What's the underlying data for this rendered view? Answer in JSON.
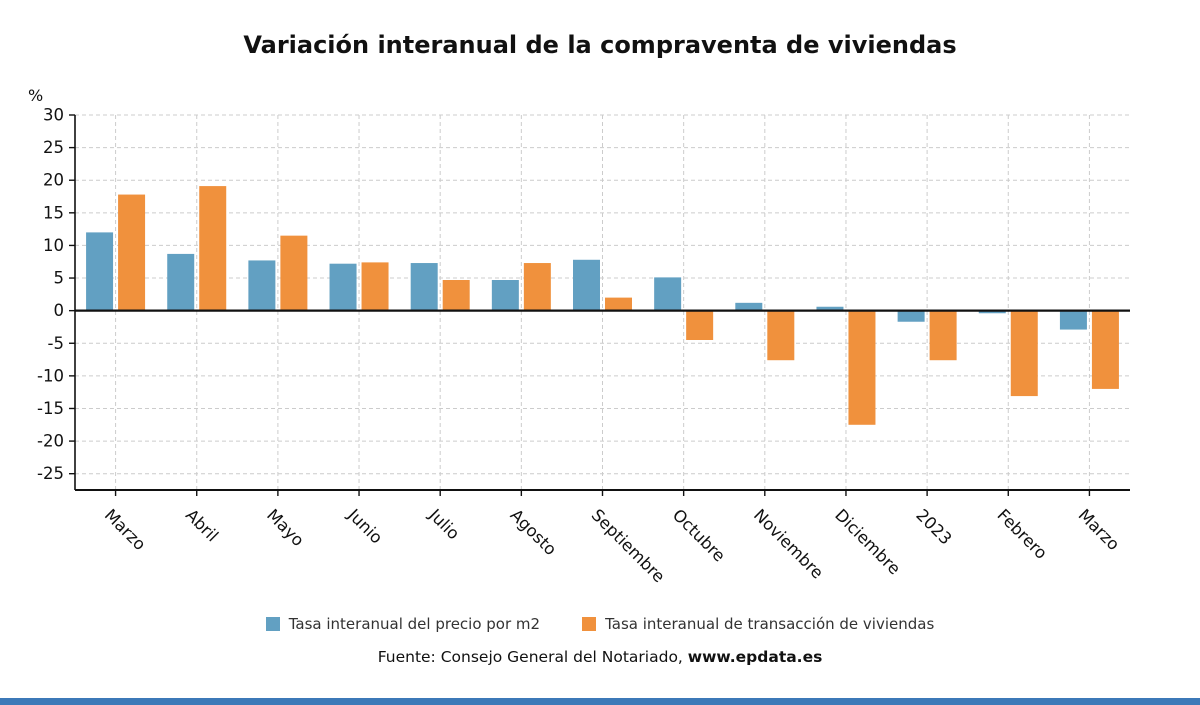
{
  "title": "Variación interanual de la compraventa de viviendas",
  "y_unit": "%",
  "source": {
    "text": "Fuente: Consejo General del Notariado, ",
    "site": "www.epdata.es"
  },
  "accent_color": "#3c79b8",
  "chart_data": {
    "type": "bar",
    "title": "Variación interanual de la compraventa de viviendas",
    "xlabel": "",
    "ylabel": "%",
    "categories": [
      "Marzo",
      "Abril",
      "Mayo",
      "Junio",
      "Julio",
      "Agosto",
      "Septiembre",
      "Octubre",
      "Noviembre",
      "Diciembre",
      "2023",
      "Febrero",
      "Marzo"
    ],
    "series": [
      {
        "name": "Tasa interanual del precio por m2",
        "color": "#62a0c2",
        "values": [
          12.0,
          8.7,
          7.7,
          7.2,
          7.3,
          4.7,
          7.8,
          5.1,
          1.2,
          0.6,
          -1.7,
          -0.4,
          -2.9
        ]
      },
      {
        "name": "Tasa interanual de transacción de viviendas",
        "color": "#f0913d",
        "values": [
          17.8,
          19.1,
          11.5,
          7.4,
          4.7,
          7.3,
          2.0,
          -4.5,
          -7.6,
          -17.5,
          -7.6,
          -13.1,
          -12.0
        ]
      }
    ],
    "ylim": [
      -27.5,
      30
    ],
    "yticks": [
      30,
      25,
      20,
      15,
      10,
      5,
      0,
      -5,
      -10,
      -15,
      -20,
      -25
    ],
    "grid": true,
    "legend_position": "bottom"
  }
}
